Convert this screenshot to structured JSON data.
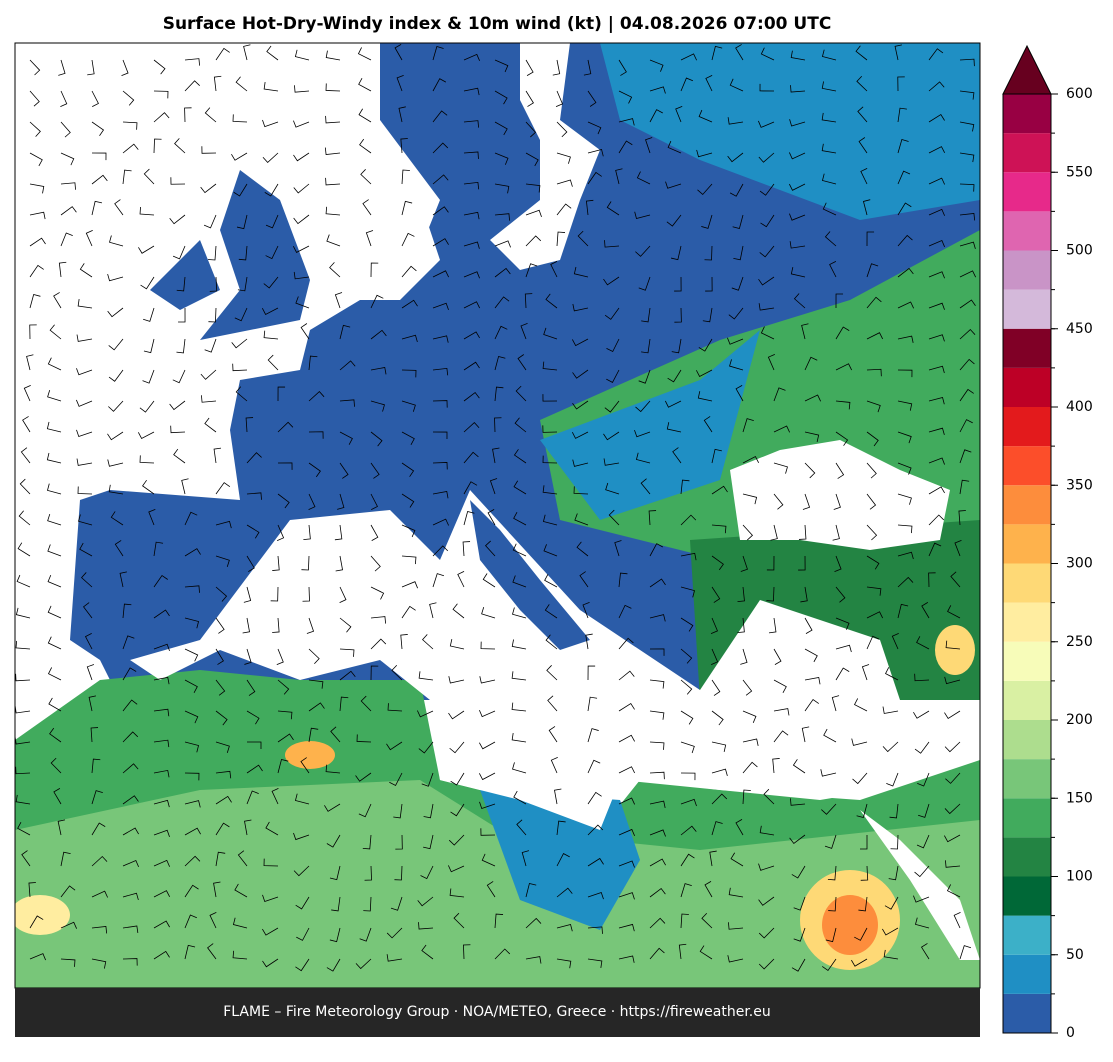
{
  "title": "Surface Hot-Dry-Windy index & 10m wind (kt)  |  04.08.2026 07:00 UTC",
  "footer": "FLAME – Fire Meteorology Group · NOA/METEO, Greece · https://fireweather.eu",
  "colorbar": {
    "levels": [
      0,
      25,
      50,
      75,
      100,
      125,
      150,
      175,
      200,
      225,
      250,
      275,
      300,
      325,
      350,
      375,
      400,
      425,
      450,
      475,
      500,
      525,
      550,
      575,
      600
    ],
    "colors": [
      "#2b5ca8",
      "#1f8fc4",
      "#3cb0c8",
      "#006837",
      "#238443",
      "#41ab5d",
      "#78c679",
      "#addd8e",
      "#d9f0a3",
      "#f7fcb9",
      "#ffeda0",
      "#fed976",
      "#feb24c",
      "#fd8d3c",
      "#fc4e2a",
      "#e31a1c",
      "#bd0026",
      "#800026",
      "#d4b9da",
      "#c994c7",
      "#df65b0",
      "#e7298a",
      "#ce1256",
      "#980043"
    ],
    "extend_color": "#67001f",
    "ticks": [
      0,
      50,
      100,
      150,
      200,
      250,
      300,
      350,
      400,
      450,
      500,
      550,
      600
    ]
  }
}
